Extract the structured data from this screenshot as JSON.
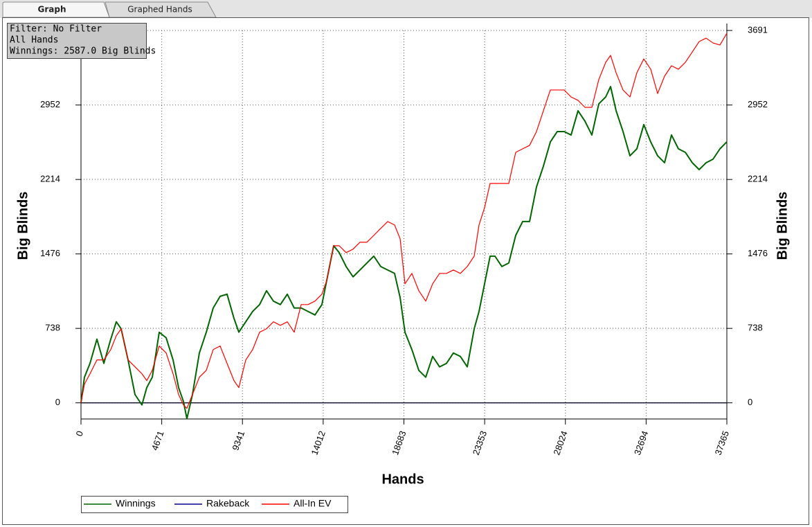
{
  "tabs": [
    "Graph",
    "Graphed Hands"
  ],
  "info": [
    "Filter: No Filter",
    "All Hands",
    "Winnings: 2587.0 Big Blinds"
  ],
  "chart_data": {
    "type": "line",
    "xlabel": "Hands",
    "ylabel": "Big Blinds",
    "y2label": "Big Blinds",
    "xlim": [
      0,
      37365
    ],
    "xticks": [
      0,
      4671,
      9341,
      14012,
      18683,
      23353,
      28024,
      32694,
      37365
    ],
    "ylim": [
      -160,
      3691
    ],
    "yticks": [
      0,
      738,
      1476,
      2214,
      2952,
      3691
    ],
    "y2lim": [
      -160,
      3691
    ],
    "y2ticks": [
      0,
      738,
      1476,
      2214,
      2952,
      3691
    ],
    "grid": true,
    "legend": "bottom-left",
    "x": [
      0,
      200,
      521,
      921,
      1322,
      1722,
      2043,
      2323,
      2724,
      3124,
      3525,
      3805,
      4125,
      4526,
      4926,
      5327,
      5647,
      5927,
      6127,
      6448,
      6848,
      7249,
      7649,
      8050,
      8450,
      8851,
      9131,
      9532,
      9932,
      10333,
      10733,
      11134,
      11534,
      11935,
      12335,
      12736,
      13136,
      13537,
      13937,
      14218,
      14618,
      14938,
      15339,
      15739,
      16140,
      16540,
      16941,
      17341,
      17742,
      18142,
      18463,
      18743,
      19143,
      19544,
      19944,
      20345,
      20745,
      21146,
      21546,
      21947,
      22347,
      22748,
      23028,
      23348,
      23669,
      23949,
      24349,
      24750,
      25150,
      25551,
      25951,
      26352,
      26752,
      27153,
      27553,
      27954,
      28354,
      28755,
      29155,
      29556,
      29956,
      30357,
      30637,
      30958,
      31358,
      31759,
      32159,
      32560,
      32960,
      33361,
      33761,
      34162,
      34562,
      34963,
      35364,
      35764,
      36165,
      36565,
      36966,
      37365
    ],
    "series": [
      {
        "name": "Winnings",
        "color": "#006400",
        "values": [
          0,
          254,
          391,
          631,
          391,
          631,
          803,
          734,
          425,
          82,
          -21,
          151,
          254,
          700,
          645,
          425,
          151,
          14,
          -158,
          82,
          494,
          700,
          940,
          1056,
          1077,
          837,
          700,
          803,
          906,
          974,
          1111,
          1008,
          974,
          1077,
          940,
          940,
          906,
          871,
          974,
          1214,
          1557,
          1489,
          1351,
          1249,
          1317,
          1386,
          1454,
          1351,
          1317,
          1283,
          1043,
          700,
          528,
          322,
          254,
          460,
          357,
          391,
          494,
          460,
          357,
          734,
          906,
          1180,
          1454,
          1454,
          1351,
          1386,
          1660,
          1797,
          1797,
          2140,
          2346,
          2586,
          2689,
          2689,
          2655,
          2895,
          2792,
          2655,
          2964,
          3032,
          3135,
          2895,
          2689,
          2449,
          2518,
          2758,
          2586,
          2449,
          2380,
          2655,
          2518,
          2483,
          2380,
          2312,
          2380,
          2415,
          2518,
          2587
        ]
      },
      {
        "name": "Rakeback",
        "color": "#00008b",
        "values": [
          0,
          0,
          0,
          0,
          0,
          0,
          0,
          0,
          0,
          0,
          0,
          0,
          0,
          0,
          0,
          0,
          0,
          0,
          0,
          0,
          0,
          0,
          0,
          0,
          0,
          0,
          0,
          0,
          0,
          0,
          0,
          0,
          0,
          0,
          0,
          0,
          0,
          0,
          0,
          0,
          0,
          0,
          0,
          0,
          0,
          0,
          0,
          0,
          0,
          0,
          0,
          0,
          0,
          0,
          0,
          0,
          0,
          0,
          0,
          0,
          0,
          0,
          0,
          0,
          0,
          0,
          0,
          0,
          0,
          0,
          0,
          0,
          0,
          0,
          0,
          0,
          0,
          0,
          0,
          0,
          0,
          0,
          0,
          0,
          0,
          0,
          0,
          0,
          0,
          0,
          0,
          0,
          0,
          0,
          0,
          0,
          0,
          0,
          0,
          0
        ]
      },
      {
        "name": "All-In EV",
        "color": "#ff0000",
        "values": [
          0,
          185,
          288,
          425,
          425,
          528,
          665,
          734,
          425,
          357,
          288,
          220,
          322,
          563,
          494,
          288,
          82,
          -21,
          -55,
          82,
          254,
          322,
          528,
          563,
          391,
          220,
          151,
          425,
          528,
          700,
          734,
          803,
          768,
          803,
          700,
          974,
          974,
          1008,
          1077,
          1214,
          1557,
          1557,
          1489,
          1523,
          1592,
          1592,
          1660,
          1729,
          1797,
          1763,
          1626,
          1180,
          1283,
          1111,
          1008,
          1180,
          1283,
          1283,
          1317,
          1283,
          1351,
          1454,
          1763,
          1935,
          2175,
          2175,
          2175,
          2175,
          2483,
          2518,
          2552,
          2689,
          2895,
          3101,
          3101,
          3101,
          3032,
          2998,
          2929,
          2929,
          3204,
          3375,
          3444,
          3272,
          3101,
          3032,
          3272,
          3409,
          3307,
          3066,
          3238,
          3341,
          3307,
          3375,
          3478,
          3581,
          3615,
          3567,
          3547,
          3663
        ]
      }
    ]
  }
}
